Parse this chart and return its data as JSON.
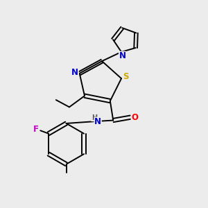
{
  "background_color": "#ececec",
  "atom_colors": {
    "C": "#000000",
    "N": "#0000cc",
    "S": "#ccaa00",
    "O": "#ff0000",
    "F": "#cc00cc",
    "H": "#555555"
  },
  "figsize": [
    3.0,
    3.0
  ],
  "dpi": 100
}
